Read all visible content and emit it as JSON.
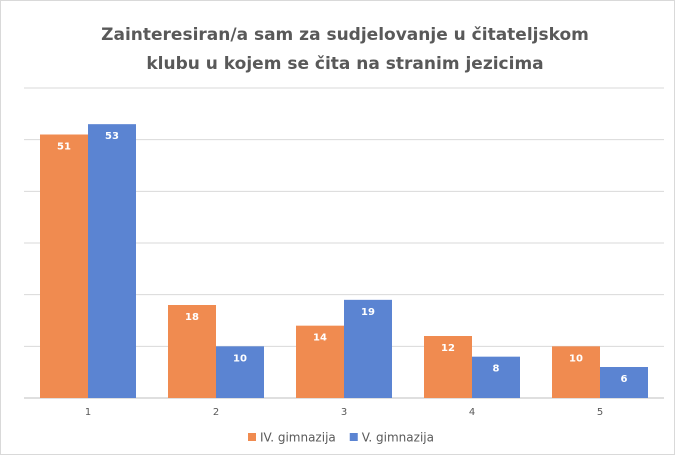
{
  "chart_data": {
    "type": "bar",
    "title": [
      "Zainteresiran/a sam za sudjelovanje u čitateljskom",
      "klubu u kojem se čita na stranim jezicima"
    ],
    "categories": [
      "1",
      "2",
      "3",
      "4",
      "5"
    ],
    "series": [
      {
        "name": "IV. gimnazija",
        "color": "#f08b50",
        "values": [
          51,
          18,
          14,
          12,
          10
        ]
      },
      {
        "name": "V. gimnazija",
        "color": "#5b84d2",
        "values": [
          53,
          10,
          19,
          8,
          6
        ]
      }
    ],
    "ylim": [
      0,
      60
    ],
    "yticks": [
      0,
      10,
      20,
      30,
      40,
      50,
      60
    ],
    "grid": true
  }
}
